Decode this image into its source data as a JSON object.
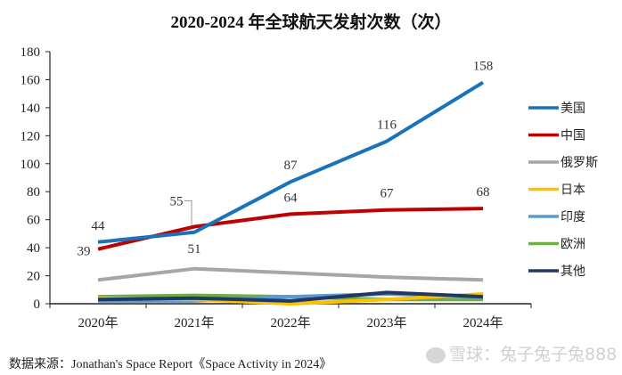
{
  "chart_data": {
    "type": "line",
    "title": "2020-2024 年全球航天发射次数（次）",
    "xlabel": "",
    "ylabel": "",
    "categories": [
      "2020年",
      "2021年",
      "2022年",
      "2023年",
      "2024年"
    ],
    "ylim": [
      0,
      180
    ],
    "yticks": [
      0,
      20,
      40,
      60,
      80,
      100,
      120,
      140,
      160,
      180
    ],
    "grid": false,
    "legend_position": "right",
    "series": [
      {
        "name": "美国",
        "color": "#1a73b8",
        "values": [
          44,
          51,
          87,
          116,
          158
        ],
        "labels": true
      },
      {
        "name": "中国",
        "color": "#c00000",
        "values": [
          39,
          55,
          64,
          67,
          68
        ],
        "labels": true
      },
      {
        "name": "俄罗斯",
        "color": "#a6a6a6",
        "values": [
          17,
          25,
          22,
          19,
          17
        ],
        "labels": false
      },
      {
        "name": "日本",
        "color": "#ffc000",
        "values": [
          4,
          3,
          0,
          3,
          7
        ],
        "labels": false
      },
      {
        "name": "印度",
        "color": "#5b9bd5",
        "values": [
          2,
          2,
          5,
          7,
          5
        ],
        "labels": false
      },
      {
        "name": "欧洲",
        "color": "#70ad47",
        "values": [
          5,
          6,
          5,
          3,
          3
        ],
        "labels": false
      },
      {
        "name": "其他",
        "color": "#203864",
        "values": [
          3,
          4,
          2,
          8,
          5
        ],
        "labels": false
      }
    ]
  },
  "source_text": "数据来源：Jonathan's Space Report《Space Activity in 2024》",
  "watermark_text": "雪球：兔子兔子兔888"
}
